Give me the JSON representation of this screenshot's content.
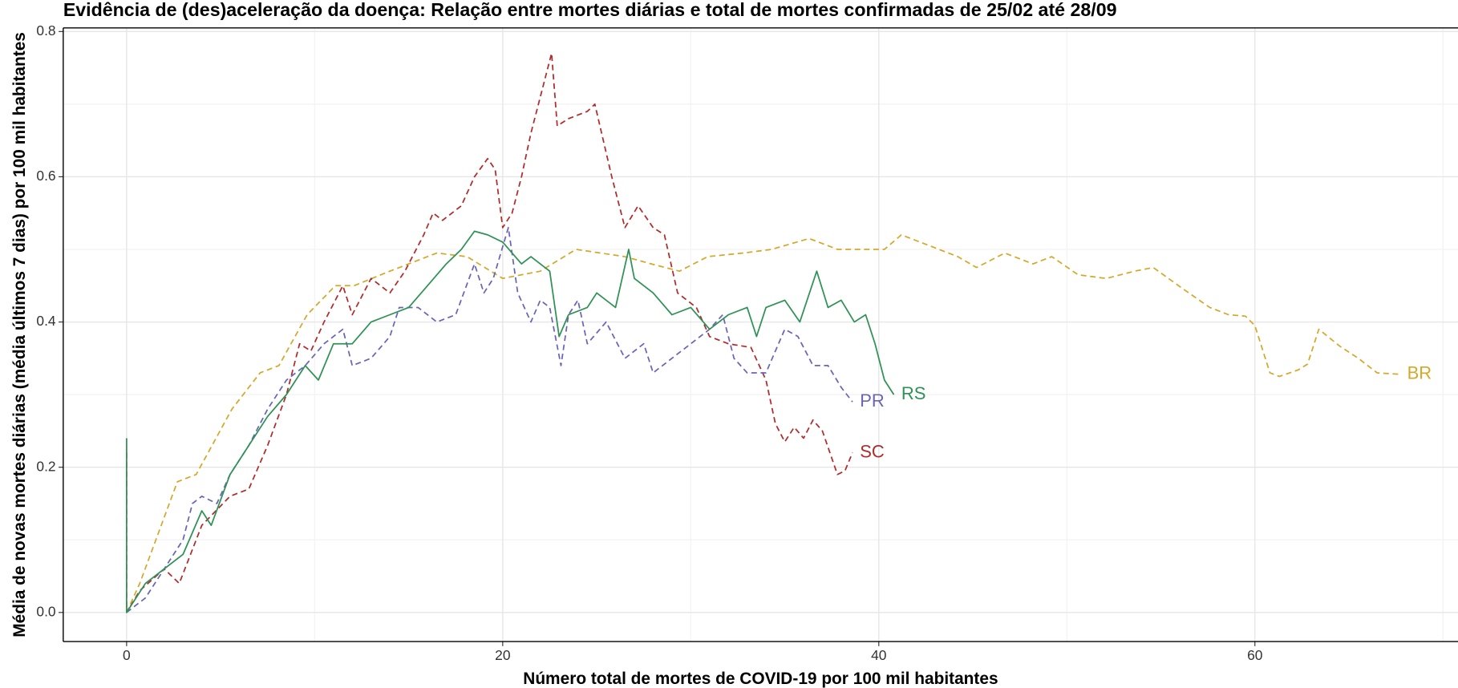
{
  "chart_data": {
    "type": "line",
    "title": "Evidência de (des)aceleração da doença: Relação entre mortes diárias e total de mortes confirmadas de 25/02 até 28/09",
    "x_label": "Número total de mortes de COVID-19 por 100 mil habitantes",
    "y_label": "Média de novas mortes diárias (média últimos 7 dias) por 100 mil habitantes",
    "xlim": [
      -3.37,
      70.8
    ],
    "ylim": [
      -0.04,
      0.805
    ],
    "xticks": [
      0,
      20,
      40,
      60
    ],
    "yticks": [
      {
        "value": 0,
        "label": "0.0"
      },
      0.2,
      0.4,
      0.6,
      0.8
    ],
    "grid": true,
    "series": [
      {
        "name": "BR",
        "color": "#d4a829",
        "linestyle": "dashed",
        "x": [
          0,
          0.7,
          2.7,
          3.7,
          5.6,
          7.1,
          8.1,
          9.6,
          11.1,
          12.1,
          14,
          15.5,
          16.5,
          18.1,
          20,
          22,
          23.9,
          26.5,
          27.9,
          29.4,
          30.9,
          32.8,
          34.3,
          36.3,
          37.8,
          40.3,
          41.2,
          42.7,
          44.2,
          45.2,
          46.7,
          48.2,
          49.2,
          50.6,
          52.1,
          53.6,
          54.6,
          56.1,
          57.6,
          58.6,
          59.5,
          60,
          60.8,
          61.3,
          62.3,
          62.8,
          63.4,
          64.5,
          65.5,
          66.5,
          67.7
        ],
        "values": [
          0,
          0.04,
          0.18,
          0.19,
          0.28,
          0.33,
          0.34,
          0.41,
          0.45,
          0.45,
          0.47,
          0.485,
          0.495,
          0.49,
          0.46,
          0.47,
          0.5,
          0.49,
          0.48,
          0.47,
          0.49,
          0.495,
          0.5,
          0.515,
          0.5,
          0.5,
          0.52,
          0.505,
          0.49,
          0.475,
          0.495,
          0.48,
          0.49,
          0.465,
          0.46,
          0.47,
          0.475,
          0.447,
          0.42,
          0.41,
          0.408,
          0.395,
          0.33,
          0.325,
          0.334,
          0.342,
          0.39,
          0.367,
          0.35,
          0.33,
          0.328
        ]
      },
      {
        "name": "SC",
        "color": "#b22a2a",
        "linestyle": "dashed",
        "x": [
          0,
          0,
          0.7,
          2,
          2.8,
          4,
          5.5,
          6.5,
          7.5,
          8.5,
          9.2,
          9.8,
          10.5,
          11.5,
          12,
          13,
          14,
          14.8,
          15.8,
          16.3,
          16.8,
          17.8,
          18.5,
          19.2,
          19.6,
          20,
          20.5,
          21,
          21.5,
          22,
          22.6,
          22.9,
          23.5,
          24.5,
          24.9,
          25.8,
          26.5,
          27.2,
          28,
          28.6,
          29.3,
          30.3,
          31,
          32,
          33.2,
          34,
          34.5,
          35,
          35.5,
          36,
          36.5,
          37,
          37.4,
          37.8,
          38.2,
          38.6
        ],
        "values": [
          0.22,
          0,
          0.03,
          0.06,
          0.04,
          0.12,
          0.16,
          0.17,
          0.23,
          0.3,
          0.37,
          0.36,
          0.4,
          0.45,
          0.41,
          0.46,
          0.44,
          0.47,
          0.52,
          0.55,
          0.54,
          0.56,
          0.6,
          0.625,
          0.61,
          0.53,
          0.55,
          0.6,
          0.66,
          0.71,
          0.77,
          0.67,
          0.68,
          0.69,
          0.7,
          0.6,
          0.53,
          0.56,
          0.53,
          0.52,
          0.44,
          0.42,
          0.38,
          0.37,
          0.365,
          0.32,
          0.26,
          0.235,
          0.255,
          0.24,
          0.265,
          0.25,
          0.22,
          0.19,
          0.195,
          0.22
        ]
      },
      {
        "name": "PR",
        "color": "#6a64b8",
        "linestyle": "dashed",
        "x": [
          0,
          1,
          2,
          3,
          3.5,
          4,
          4.8,
          5.5,
          6.5,
          7.5,
          8.5,
          9.5,
          10.5,
          11.5,
          12,
          13,
          14,
          14.5,
          15.5,
          16.5,
          17.5,
          18.5,
          19,
          19.5,
          20.3,
          20.8,
          21.5,
          22,
          22.5,
          23.1,
          23.5,
          24,
          24.5,
          25.5,
          26.5,
          27.5,
          28,
          29,
          30,
          31,
          31.7,
          32.3,
          33,
          34,
          35,
          35.7,
          36.5,
          37.3,
          38,
          38.6
        ],
        "values": [
          0,
          0.02,
          0.06,
          0.1,
          0.15,
          0.16,
          0.15,
          0.19,
          0.23,
          0.28,
          0.32,
          0.34,
          0.37,
          0.39,
          0.34,
          0.35,
          0.38,
          0.42,
          0.42,
          0.4,
          0.41,
          0.48,
          0.44,
          0.46,
          0.53,
          0.44,
          0.4,
          0.43,
          0.42,
          0.34,
          0.41,
          0.43,
          0.37,
          0.4,
          0.35,
          0.37,
          0.33,
          0.35,
          0.37,
          0.39,
          0.41,
          0.35,
          0.33,
          0.33,
          0.39,
          0.38,
          0.34,
          0.34,
          0.31,
          0.29
        ]
      },
      {
        "name": "RS",
        "color": "#2e9255",
        "linestyle": "solid",
        "x": [
          0,
          0,
          1,
          2,
          3,
          4,
          4.5,
          5.5,
          6.5,
          7.5,
          8.5,
          9.5,
          10.2,
          11,
          12,
          13,
          14,
          15,
          16,
          17,
          17.8,
          18.5,
          19.2,
          20,
          21,
          21.5,
          22.5,
          23,
          23.5,
          24.5,
          25,
          26,
          26.7,
          27,
          28,
          29,
          30,
          31,
          32,
          33,
          33.5,
          34,
          35,
          35.8,
          36.7,
          37.3,
          38,
          38.7,
          39.3,
          39.8,
          40.3,
          40.8
        ],
        "values": [
          0.24,
          0,
          0.04,
          0.06,
          0.08,
          0.14,
          0.12,
          0.19,
          0.23,
          0.27,
          0.3,
          0.34,
          0.32,
          0.37,
          0.37,
          0.4,
          0.41,
          0.42,
          0.45,
          0.48,
          0.5,
          0.525,
          0.52,
          0.51,
          0.48,
          0.49,
          0.47,
          0.38,
          0.41,
          0.42,
          0.44,
          0.42,
          0.5,
          0.46,
          0.44,
          0.41,
          0.42,
          0.39,
          0.41,
          0.42,
          0.38,
          0.42,
          0.43,
          0.4,
          0.47,
          0.42,
          0.43,
          0.4,
          0.41,
          0.37,
          0.32,
          0.3
        ]
      }
    ]
  }
}
